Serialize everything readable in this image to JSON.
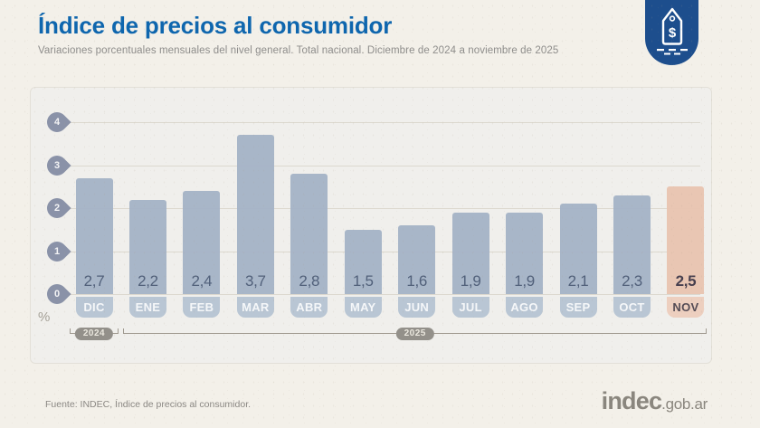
{
  "header": {
    "title": "Índice de precios al consumidor",
    "subtitle": "Variaciones porcentuales mensuales del nivel general. Total nacional. Diciembre de 2024 a noviembre de 2025"
  },
  "badge": {
    "icon": "price-tag-dollar",
    "symbol": "$",
    "bg_color": "#1d4e8d"
  },
  "chart_data": {
    "type": "bar",
    "title": "Índice de precios al consumidor",
    "categories": [
      "DIC",
      "ENE",
      "FEB",
      "MAR",
      "ABR",
      "MAY",
      "JUN",
      "JUL",
      "AGO",
      "SEP",
      "OCT",
      "NOV"
    ],
    "values": [
      2.7,
      2.2,
      2.4,
      3.7,
      2.8,
      1.5,
      1.6,
      1.9,
      1.9,
      2.1,
      2.3,
      2.5
    ],
    "value_labels": [
      "2,7",
      "2,2",
      "2,4",
      "3,7",
      "2,8",
      "1,5",
      "1,6",
      "1,9",
      "1,9",
      "2,1",
      "2,3",
      "2,5"
    ],
    "highlight_index": 11,
    "ylabel": "%",
    "ylim": [
      0,
      4
    ],
    "yticks": [
      0,
      1,
      2,
      3,
      4
    ],
    "grid": true,
    "year_groups": [
      {
        "label": "2024",
        "from": 0,
        "to": 0
      },
      {
        "label": "2025",
        "from": 1,
        "to": 11
      }
    ],
    "colors": {
      "bar": "#a3b2c6",
      "bar_highlight": "#e8c4b1",
      "chip": "#b9c6d4",
      "chip_highlight": "#edcfbf",
      "tick_pin": "#8a92a8",
      "accent_title": "#0e66ae"
    }
  },
  "footer": {
    "source": "Fuente: INDEC, Índice de precios al consumidor.",
    "logo_main": "indec",
    "logo_suffix": ".gob.ar"
  }
}
